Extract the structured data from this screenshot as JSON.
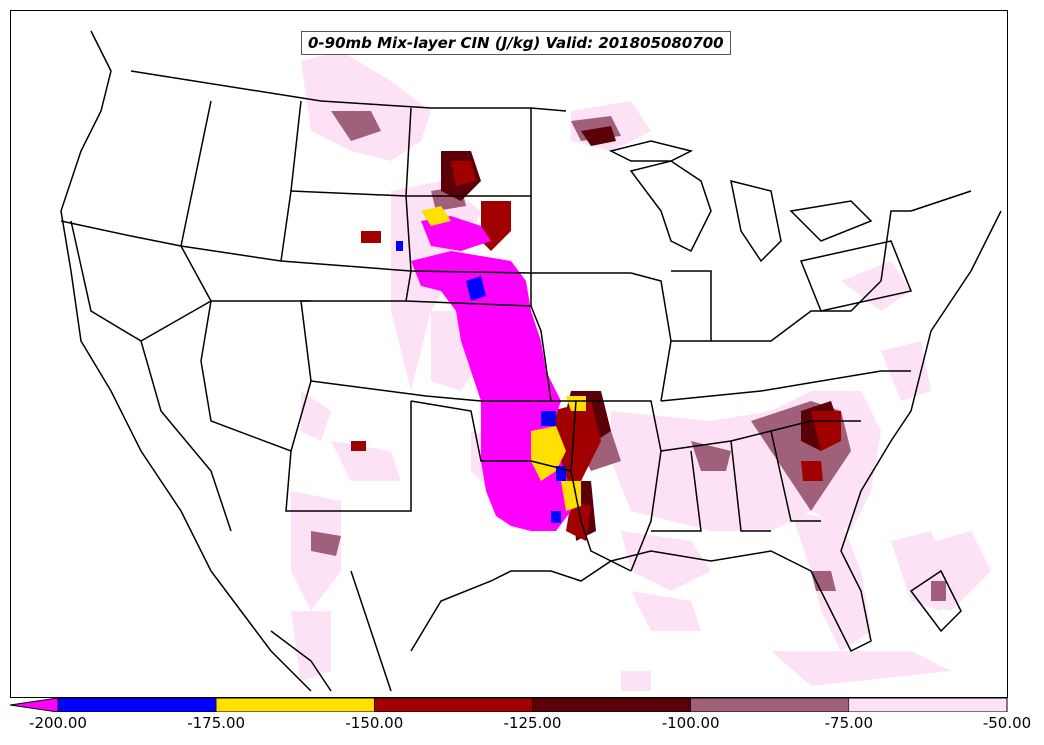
{
  "title": "0-90mb Mix-layer CIN (J/kg) Valid: 201805080700",
  "colorbar": {
    "extend": "min",
    "bins": [
      {
        "from": -200,
        "to": -175,
        "color": "#0000ff"
      },
      {
        "from": -175,
        "to": -150,
        "color": "#ffe000"
      },
      {
        "from": -150,
        "to": -125,
        "color": "#a00000"
      },
      {
        "from": -125,
        "to": -100,
        "color": "#5c0008"
      },
      {
        "from": -100,
        "to": -75,
        "color": "#a0607a"
      },
      {
        "from": -75,
        "to": -50,
        "color": "#fde2f6"
      }
    ],
    "under_color": "#ff00ff",
    "ticks": [
      "-200.00",
      "-175.00",
      "-150.00",
      "-125.00",
      "-100.00",
      "-75.00",
      "-50.00"
    ]
  },
  "colors": {
    "extreme_low": "#ff00ff",
    "band_175_200": "#0000ff",
    "band_150_175": "#ffe000",
    "band_125_150": "#a00000",
    "band_100_125": "#5c0008",
    "band_75_100": "#a0607a",
    "band_50_75": "#fde2f6"
  }
}
